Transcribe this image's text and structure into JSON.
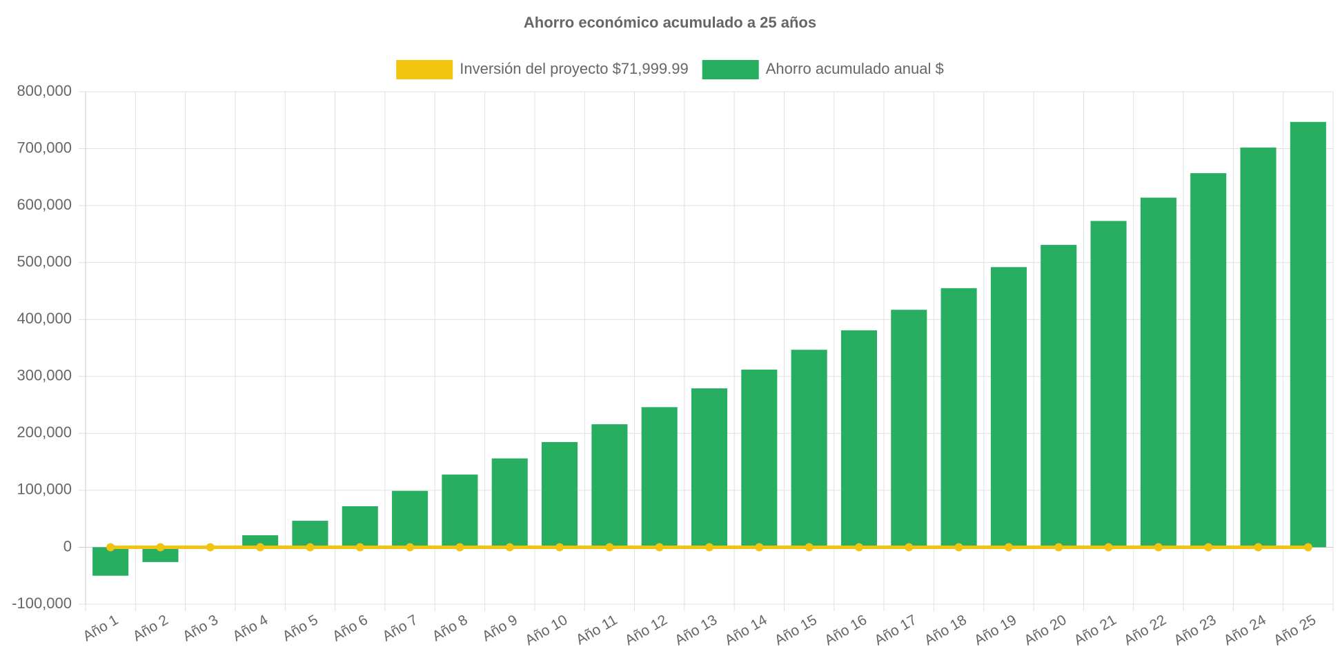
{
  "chart_data": {
    "type": "bar",
    "title": "Ahorro económico acumulado a 25 años",
    "categories": [
      "Año 1",
      "Año 2",
      "Año 3",
      "Año 4",
      "Año 5",
      "Año 6",
      "Año 7",
      "Año 8",
      "Año 9",
      "Año 10",
      "Año 11",
      "Año 12",
      "Año 13",
      "Año 14",
      "Año 15",
      "Año 16",
      "Año 17",
      "Año 18",
      "Año 19",
      "Año 20",
      "Año 21",
      "Año 22",
      "Año 23",
      "Año 24",
      "Año 25"
    ],
    "series": [
      {
        "name": "Inversión del proyecto $71,999.99",
        "type": "line",
        "color": "#f1c40f",
        "values": [
          0,
          0,
          0,
          0,
          0,
          0,
          0,
          0,
          0,
          0,
          0,
          0,
          0,
          0,
          0,
          0,
          0,
          0,
          0,
          0,
          0,
          0,
          0,
          0,
          0
        ]
      },
      {
        "name": "Ahorro acumulado anual $",
        "type": "bar",
        "color": "#27ae60",
        "values": [
          -50000,
          -26000,
          0,
          21000,
          46500,
          72000,
          99000,
          127600,
          156000,
          184700,
          216000,
          246000,
          279000,
          312000,
          346800,
          381000,
          417000,
          455000,
          492000,
          531000,
          573000,
          614000,
          657000,
          702000,
          747000
        ]
      }
    ],
    "ylim": [
      -100000,
      800000
    ],
    "yticks": [
      {
        "value": -100000,
        "label": "-100,000"
      },
      0,
      {
        "value": 100000,
        "label": "100,000"
      },
      {
        "value": 200000,
        "label": "200,000"
      },
      {
        "value": 300000,
        "label": "300,000"
      },
      {
        "value": 400000,
        "label": "400,000"
      },
      {
        "value": 500000,
        "label": "500,000"
      },
      {
        "value": 600000,
        "label": "600,000"
      },
      {
        "value": 700000,
        "label": "700,000"
      },
      {
        "value": 800000,
        "label": "800,000"
      }
    ],
    "grid": true
  }
}
